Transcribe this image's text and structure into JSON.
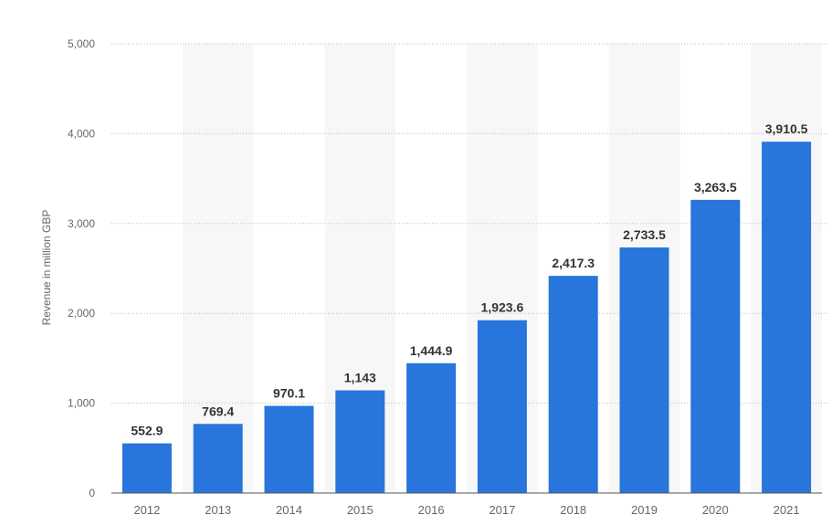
{
  "chart_data": {
    "type": "bar",
    "categories": [
      "2012",
      "2013",
      "2014",
      "2015",
      "2016",
      "2017",
      "2018",
      "2019",
      "2020",
      "2021"
    ],
    "values": [
      552.9,
      769.4,
      970.1,
      1143,
      1444.9,
      1923.6,
      2417.3,
      2733.5,
      3263.5,
      3910.5
    ],
    "value_labels": [
      "552.9",
      "769.4",
      "970.1",
      "1,143",
      "1,444.9",
      "1,923.6",
      "2,417.3",
      "2,733.5",
      "3,263.5",
      "3,910.5"
    ],
    "ylabel": "Revenue in million GBP",
    "ylim": [
      0,
      5000
    ],
    "yticks": [
      0,
      1000,
      2000,
      3000,
      4000,
      5000
    ],
    "ytick_labels": [
      "0",
      "1,000",
      "2,000",
      "3,000",
      "4,000",
      "5,000"
    ],
    "grid": true,
    "colors": {
      "bar": "#2875dc",
      "band": "#f7f7f7",
      "grid": "#bdbdbd",
      "axis": "#555555",
      "tick_text": "#666666",
      "value_text": "#333333"
    }
  }
}
